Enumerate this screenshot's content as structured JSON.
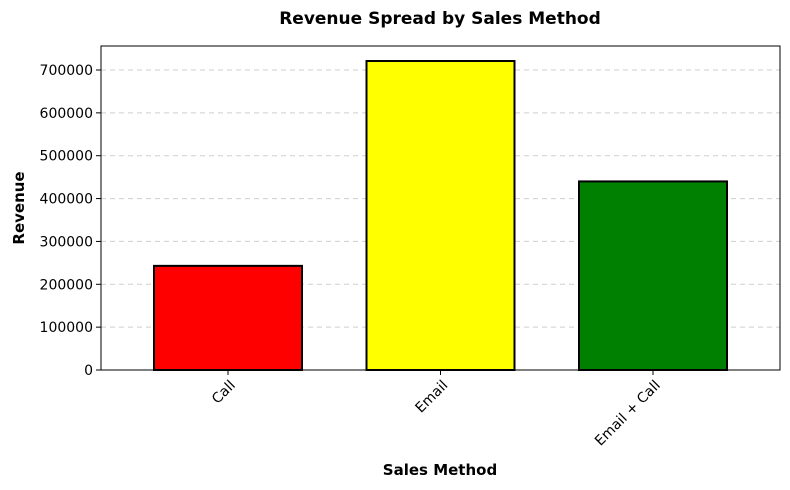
{
  "chart_data": {
    "type": "bar",
    "title": "Revenue Spread by Sales Method",
    "xlabel": "Sales Method",
    "ylabel": "Revenue",
    "categories": [
      "Call",
      "Email",
      "Email + Call"
    ],
    "values": [
      243000,
      721000,
      440000
    ],
    "colors": [
      "#ff0000",
      "#ffff00",
      "#008000"
    ],
    "ylim": [
      0,
      756000
    ],
    "yticks": [
      0,
      100000,
      200000,
      300000,
      400000,
      500000,
      600000,
      700000
    ],
    "ytick_labels": [
      "0",
      "100000",
      "200000",
      "300000",
      "400000",
      "500000",
      "600000",
      "700000"
    ],
    "x_tick_rotation": 45,
    "grid": {
      "axis": "y",
      "style": "dashed"
    },
    "legend": "none"
  }
}
